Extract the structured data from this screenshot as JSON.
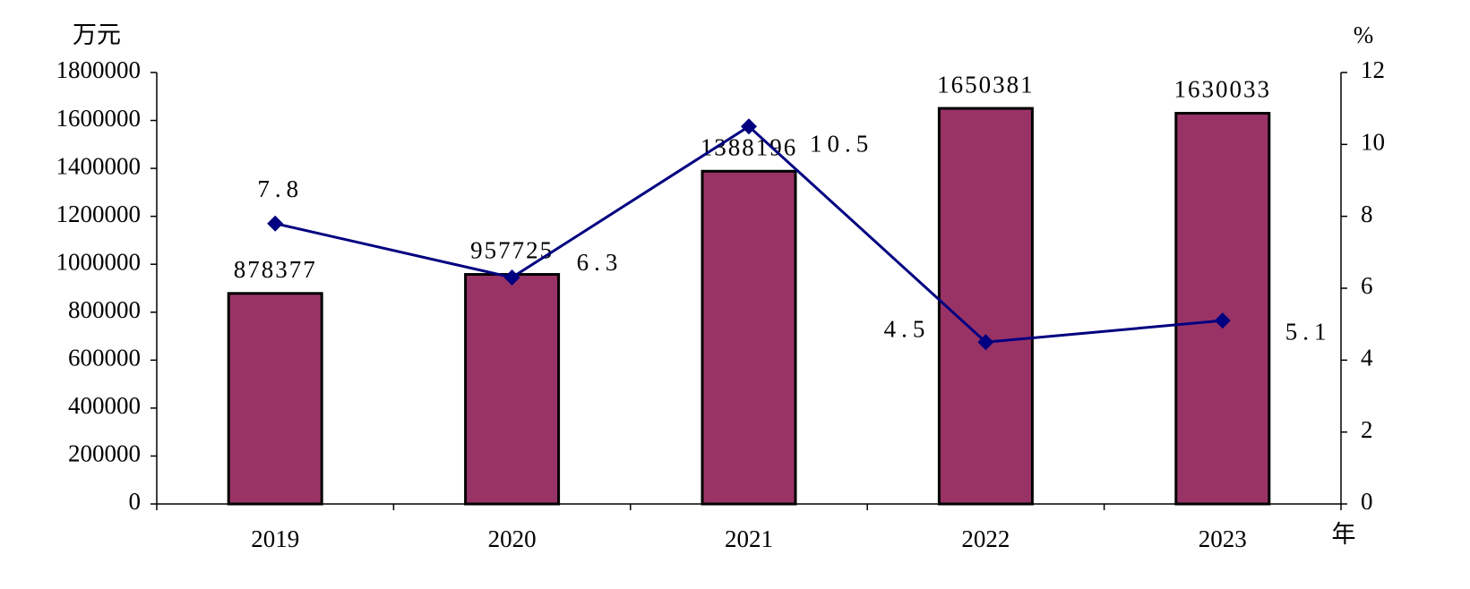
{
  "chart_data": {
    "type": "bar",
    "y_label": "万元",
    "y2_label": "%",
    "x_label": "年",
    "categories": [
      "2019",
      "2020",
      "2021",
      "2022",
      "2023"
    ],
    "series": [
      {
        "type": "bar",
        "color": "#993366",
        "values": [
          878377,
          957725,
          1388196,
          1650381,
          1630033
        ]
      },
      {
        "type": "line",
        "color": "#000080",
        "axis": "y2",
        "values": [
          7.8,
          6.3,
          10.5,
          4.5,
          5.1
        ]
      }
    ],
    "ylim": [
      0,
      1800000
    ],
    "yticks": [
      0,
      200000,
      400000,
      600000,
      800000,
      1000000,
      1200000,
      1400000,
      1600000,
      1800000
    ],
    "y2lim": [
      0,
      12
    ],
    "y2ticks": [
      0,
      2,
      4,
      6,
      8,
      10,
      12
    ],
    "grid": false
  }
}
